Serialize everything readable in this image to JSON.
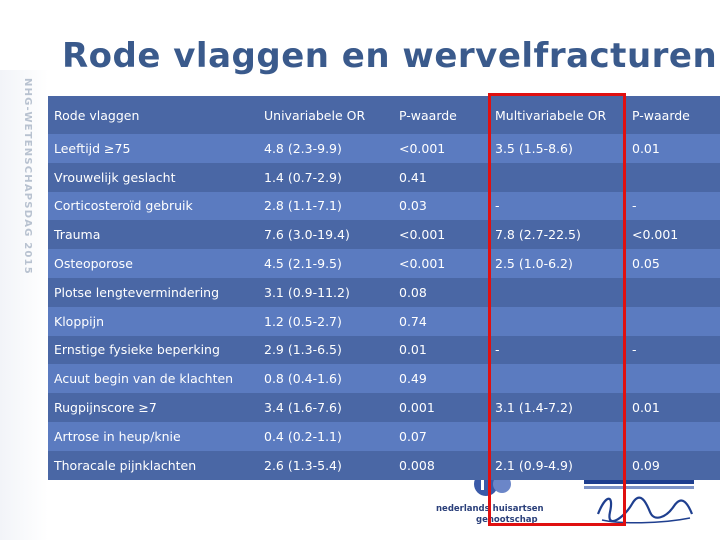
{
  "slide": {
    "title": "Rode vlaggen en wervelfracturen",
    "side_text": "NHG-WETENSCHAPSDAG 2015"
  },
  "table": {
    "headers": [
      "Rode vlaggen",
      "Univariabele OR",
      "P-waarde",
      "Multivariabele OR",
      "P-waarde"
    ],
    "rows": [
      [
        "Leeftijd ≥75",
        "4.8 (2.3-9.9)",
        "<0.001",
        "3.5 (1.5-8.6)",
        "0.01"
      ],
      [
        "Vrouwelijk geslacht",
        "1.4 (0.7-2.9)",
        "0.41",
        "",
        ""
      ],
      [
        "Corticosteroïd gebruik",
        "2.8 (1.1-7.1)",
        "0.03",
        "-",
        "-"
      ],
      [
        "Trauma",
        "7.6 (3.0-19.4)",
        "<0.001",
        "7.8 (2.7-22.5)",
        "<0.001"
      ],
      [
        "Osteoporose",
        "4.5 (2.1-9.5)",
        "<0.001",
        "2.5 (1.0-6.2)",
        "0.05"
      ],
      [
        "Plotse lengtevermindering",
        "3.1 (0.9-11.2)",
        "0.08",
        "",
        ""
      ],
      [
        "Kloppijn",
        "1.2 (0.5-2.7)",
        "0.74",
        "",
        ""
      ],
      [
        "Ernstige fysieke beperking",
        "2.9 (1.3-6.5)",
        "0.01",
        "-",
        "-"
      ],
      [
        "Acuut begin van de klachten",
        "0.8 (0.4-1.6)",
        "0.49",
        "",
        ""
      ],
      [
        "Rugpijnscore ≥7",
        "3.4 (1.6-7.6)",
        "0.001",
        "3.1 (1.4-7.2)",
        "0.01"
      ],
      [
        "Artrose in heup/knie",
        "0.4 (0.2-1.1)",
        "0.07",
        "",
        ""
      ],
      [
        "Thoracale pijnklachten",
        "2.6 (1.3-5.4)",
        "0.008",
        "2.1 (0.9-4.9)",
        "0.09"
      ]
    ]
  },
  "logos": {
    "nhg_line1": "nederlands huisartsen",
    "nhg_line2": "genootschap",
    "nhg_mark_icon": "nhg-logo-icon",
    "erasmus_icon": "erasmus-logo-icon"
  },
  "colors": {
    "title": "#3a5a8c",
    "row_dark": "#4a67a5",
    "row_light": "#5b7bc0",
    "highlight": "#e01010"
  }
}
